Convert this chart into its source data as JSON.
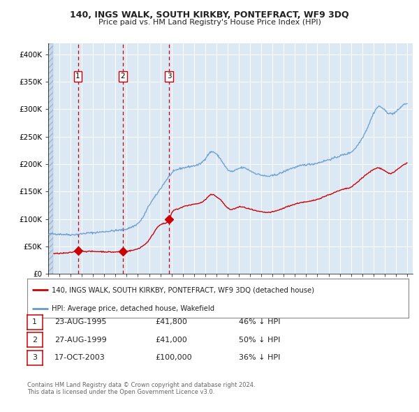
{
  "title_line1": "140, INGS WALK, SOUTH KIRKBY, PONTEFRACT, WF9 3DQ",
  "title_line2": "Price paid vs. HM Land Registry's House Price Index (HPI)",
  "legend_line1": "140, INGS WALK, SOUTH KIRKBY, PONTEFRACT, WF9 3DQ (detached house)",
  "legend_line2": "HPI: Average price, detached house, Wakefield",
  "footer_line1": "Contains HM Land Registry data © Crown copyright and database right 2024.",
  "footer_line2": "This data is licensed under the Open Government Licence v3.0.",
  "sale_color": "#cc0000",
  "hpi_color": "#6699cc",
  "marker_color": "#cc0000",
  "dashed_line_color": "#cc0000",
  "plot_bg_color": "#dce9f5",
  "sales": [
    {
      "label": "1",
      "date_num": 1995.648,
      "price": 41800,
      "date_str": "23-AUG-1995",
      "price_str": "£41,800",
      "pct": "46% ↓ HPI"
    },
    {
      "label": "2",
      "date_num": 1999.648,
      "price": 41000,
      "date_str": "27-AUG-1999",
      "price_str": "£41,000",
      "pct": "50% ↓ HPI"
    },
    {
      "label": "3",
      "date_num": 2003.792,
      "price": 100000,
      "date_str": "17-OCT-2003",
      "price_str": "£100,000",
      "pct": "36% ↓ HPI"
    }
  ],
  "ylim": [
    0,
    420000
  ],
  "xlim": [
    1993.0,
    2025.5
  ],
  "yticks": [
    0,
    50000,
    100000,
    150000,
    200000,
    250000,
    300000,
    350000,
    400000
  ],
  "ytick_labels": [
    "£0",
    "£50K",
    "£100K",
    "£150K",
    "£200K",
    "£250K",
    "£300K",
    "£350K",
    "£400K"
  ],
  "xticks": [
    1993,
    1994,
    1995,
    1996,
    1997,
    1998,
    1999,
    2000,
    2001,
    2002,
    2003,
    2004,
    2005,
    2006,
    2007,
    2008,
    2009,
    2010,
    2011,
    2012,
    2013,
    2014,
    2015,
    2016,
    2017,
    2018,
    2019,
    2020,
    2021,
    2022,
    2023,
    2024,
    2025
  ],
  "hpi_anchors": [
    [
      1993.0,
      72000
    ],
    [
      1993.5,
      73000
    ],
    [
      1994.0,
      72500
    ],
    [
      1994.5,
      72000
    ],
    [
      1995.0,
      71500
    ],
    [
      1995.5,
      72000
    ],
    [
      1996.0,
      73000
    ],
    [
      1996.5,
      74500
    ],
    [
      1997.0,
      75000
    ],
    [
      1997.5,
      76000
    ],
    [
      1998.0,
      77000
    ],
    [
      1998.5,
      78000
    ],
    [
      1999.0,
      79000
    ],
    [
      1999.5,
      80000
    ],
    [
      2000.0,
      82000
    ],
    [
      2000.5,
      86000
    ],
    [
      2001.0,
      92000
    ],
    [
      2001.5,
      105000
    ],
    [
      2002.0,
      125000
    ],
    [
      2002.5,
      140000
    ],
    [
      2003.0,
      155000
    ],
    [
      2003.5,
      170000
    ],
    [
      2004.0,
      183000
    ],
    [
      2004.5,
      190000
    ],
    [
      2005.0,
      193000
    ],
    [
      2005.5,
      195000
    ],
    [
      2006.0,
      197000
    ],
    [
      2006.5,
      200000
    ],
    [
      2007.0,
      210000
    ],
    [
      2007.5,
      222000
    ],
    [
      2008.0,
      218000
    ],
    [
      2008.5,
      205000
    ],
    [
      2009.0,
      190000
    ],
    [
      2009.5,
      187000
    ],
    [
      2010.0,
      192000
    ],
    [
      2010.5,
      193000
    ],
    [
      2011.0,
      188000
    ],
    [
      2011.5,
      183000
    ],
    [
      2012.0,
      180000
    ],
    [
      2012.5,
      178000
    ],
    [
      2013.0,
      179000
    ],
    [
      2013.5,
      182000
    ],
    [
      2014.0,
      186000
    ],
    [
      2014.5,
      191000
    ],
    [
      2015.0,
      194000
    ],
    [
      2015.5,
      197000
    ],
    [
      2016.0,
      199000
    ],
    [
      2016.5,
      200000
    ],
    [
      2017.0,
      202000
    ],
    [
      2017.5,
      205000
    ],
    [
      2018.0,
      208000
    ],
    [
      2018.5,
      211000
    ],
    [
      2019.0,
      215000
    ],
    [
      2019.5,
      218000
    ],
    [
      2020.0,
      222000
    ],
    [
      2020.5,
      232000
    ],
    [
      2021.0,
      248000
    ],
    [
      2021.5,
      268000
    ],
    [
      2022.0,
      292000
    ],
    [
      2022.5,
      305000
    ],
    [
      2023.0,
      298000
    ],
    [
      2023.5,
      292000
    ],
    [
      2024.0,
      295000
    ],
    [
      2024.5,
      305000
    ],
    [
      2025.0,
      310000
    ]
  ],
  "red_anchors": [
    [
      1993.5,
      37000
    ],
    [
      1994.0,
      37500
    ],
    [
      1994.5,
      38000
    ],
    [
      1995.0,
      39000
    ],
    [
      1995.648,
      41800
    ],
    [
      1996.0,
      41500
    ],
    [
      1997.0,
      41000
    ],
    [
      1998.0,
      40500
    ],
    [
      1999.0,
      40000
    ],
    [
      1999.648,
      41000
    ],
    [
      2000.0,
      41500
    ],
    [
      2000.5,
      43000
    ],
    [
      2001.0,
      46000
    ],
    [
      2001.5,
      52000
    ],
    [
      2002.0,
      62000
    ],
    [
      2002.5,
      78000
    ],
    [
      2003.0,
      90000
    ],
    [
      2003.792,
      100000
    ],
    [
      2004.0,
      110000
    ],
    [
      2004.5,
      118000
    ],
    [
      2005.0,
      122000
    ],
    [
      2005.5,
      125000
    ],
    [
      2006.0,
      127000
    ],
    [
      2006.5,
      129000
    ],
    [
      2007.0,
      135000
    ],
    [
      2007.5,
      144000
    ],
    [
      2008.0,
      141000
    ],
    [
      2008.5,
      132000
    ],
    [
      2009.0,
      120000
    ],
    [
      2009.5,
      118000
    ],
    [
      2010.0,
      122000
    ],
    [
      2010.5,
      121000
    ],
    [
      2011.0,
      118000
    ],
    [
      2011.5,
      115000
    ],
    [
      2012.0,
      113000
    ],
    [
      2012.5,
      112000
    ],
    [
      2013.0,
      113000
    ],
    [
      2013.5,
      116000
    ],
    [
      2014.0,
      120000
    ],
    [
      2014.5,
      124000
    ],
    [
      2015.0,
      127000
    ],
    [
      2015.5,
      130000
    ],
    [
      2016.0,
      131000
    ],
    [
      2016.5,
      133000
    ],
    [
      2017.0,
      136000
    ],
    [
      2017.5,
      140000
    ],
    [
      2018.0,
      144000
    ],
    [
      2018.5,
      148000
    ],
    [
      2019.0,
      152000
    ],
    [
      2019.5,
      155000
    ],
    [
      2020.0,
      158000
    ],
    [
      2020.5,
      166000
    ],
    [
      2021.0,
      175000
    ],
    [
      2021.5,
      183000
    ],
    [
      2022.0,
      190000
    ],
    [
      2022.5,
      193000
    ],
    [
      2023.0,
      188000
    ],
    [
      2023.5,
      183000
    ],
    [
      2024.0,
      188000
    ],
    [
      2024.5,
      196000
    ],
    [
      2025.0,
      202000
    ]
  ]
}
